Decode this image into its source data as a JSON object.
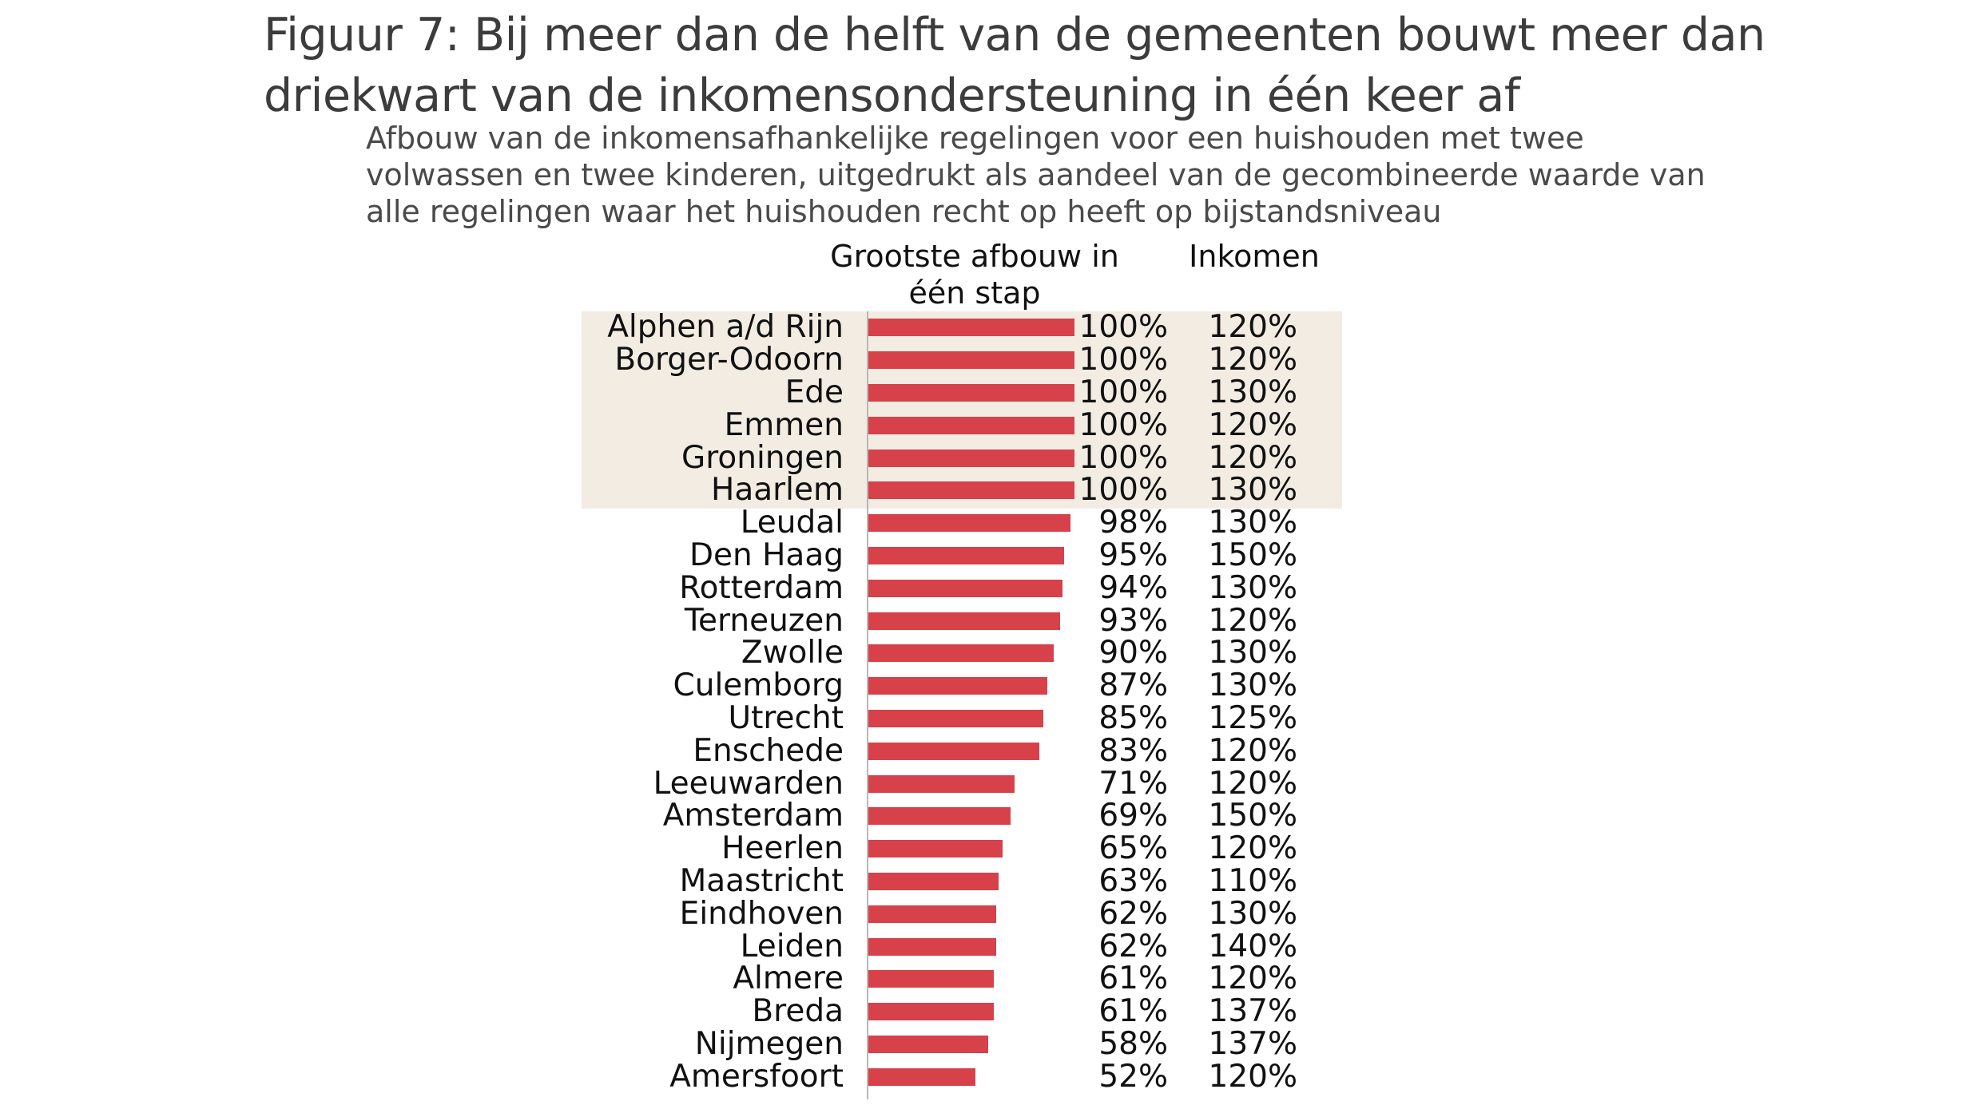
{
  "title": "Figuur 7: Bij meer dan de helft van de gemeenten bouwt meer dan driekwart van de inkomensondersteuning in één keer af",
  "subtitle": "Afbouw van de inkomensafhankelijke regelingen voor een huishouden met twee volwassen en twee kinderen, uitgedrukt als aandeel van de gecombineerde waarde van alle regelingen waar het huishouden recht op heeft op bijstandsniveau",
  "colors": {
    "bar": "#d7414a",
    "highlight": "#f2ece2",
    "axis": "#b8b8b8"
  },
  "chart_data": {
    "type": "bar",
    "orientation": "horizontal",
    "title": "Figuur 7: Bij meer dan de helft van de gemeenten bouwt meer dan driekwart van de inkomensondersteuning in één keer af",
    "subtitle": "Afbouw van de inkomensafhankelijke regelingen voor een huishouden met twee volwassen en twee kinderen, uitgedrukt als aandeel van de gecombineerde waarde van alle regelingen waar het huishouden recht op heeft op bijstandsniveau",
    "value_column_header": "Grootste afbouw in één stap",
    "income_column_header": "Inkomen",
    "xlim": [
      0,
      100
    ],
    "highlighted_categories": [
      "Alphen a/d Rijn",
      "Borger-Odoorn",
      "Ede",
      "Emmen",
      "Groningen",
      "Haarlem"
    ],
    "categories": [
      "Alphen a/d Rijn",
      "Borger-Odoorn",
      "Ede",
      "Emmen",
      "Groningen",
      "Haarlem",
      "Leudal",
      "Den Haag",
      "Rotterdam",
      "Terneuzen",
      "Zwolle",
      "Culemborg",
      "Utrecht",
      "Enschede",
      "Leeuwarden",
      "Amsterdam",
      "Heerlen",
      "Maastricht",
      "Eindhoven",
      "Leiden",
      "Almere",
      "Breda",
      "Nijmegen",
      "Amersfoort"
    ],
    "values": [
      100,
      100,
      100,
      100,
      100,
      100,
      98,
      95,
      94,
      93,
      90,
      87,
      85,
      83,
      71,
      69,
      65,
      63,
      62,
      62,
      61,
      61,
      58,
      52
    ],
    "value_labels": [
      "100%",
      "100%",
      "100%",
      "100%",
      "100%",
      "100%",
      "98%",
      "95%",
      "94%",
      "93%",
      "90%",
      "87%",
      "85%",
      "83%",
      "71%",
      "69%",
      "65%",
      "63%",
      "62%",
      "62%",
      "61%",
      "61%",
      "58%",
      "52%"
    ],
    "income_labels": [
      "120%",
      "120%",
      "130%",
      "120%",
      "120%",
      "130%",
      "130%",
      "150%",
      "130%",
      "120%",
      "130%",
      "130%",
      "125%",
      "120%",
      "120%",
      "150%",
      "120%",
      "110%",
      "130%",
      "140%",
      "120%",
      "137%",
      "137%",
      "120%"
    ]
  }
}
